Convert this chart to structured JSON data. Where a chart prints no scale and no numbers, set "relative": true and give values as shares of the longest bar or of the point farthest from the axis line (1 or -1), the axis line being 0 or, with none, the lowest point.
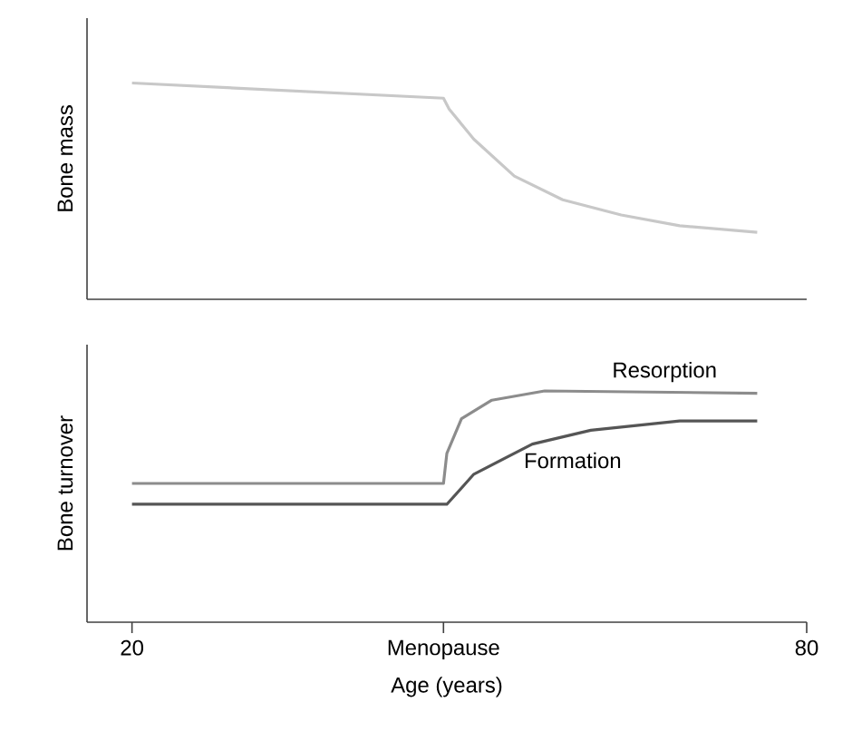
{
  "chart_data": [
    {
      "type": "line",
      "relative": true,
      "ylabel": "Bone mass",
      "xlim": [
        16,
        80
      ],
      "tick_labels": false,
      "series": [
        {
          "color": "#c8c8c8",
          "x": [
            20,
            47.7,
            48.2,
            50.4,
            54.0,
            58.3,
            63.5,
            68.7,
            75.6
          ],
          "values": [
            1.0,
            0.93,
            0.88,
            0.74,
            0.57,
            0.46,
            0.39,
            0.34,
            0.31
          ]
        }
      ]
    },
    {
      "type": "line",
      "relative": true,
      "ylabel": "Bone turnover",
      "xlabel": "Age (years)",
      "xlim": [
        16,
        80
      ],
      "tick_labels": "x",
      "xticks": [
        20,
        {
          "value": 47.7,
          "label": "Menopause"
        },
        80
      ],
      "series": [
        {
          "name": "Resorption",
          "color": "#8c8c8c",
          "x": [
            20,
            47.7,
            48.0,
            49.3,
            52.0,
            56.7,
            75.6
          ],
          "values": [
            0.6,
            0.6,
            0.73,
            0.88,
            0.96,
            1.0,
            0.99
          ]
        },
        {
          "name": "Formation",
          "color": "#555555",
          "x": [
            20,
            48.0,
            50.4,
            55.6,
            60.8,
            68.7,
            75.6
          ],
          "values": [
            0.51,
            0.51,
            0.64,
            0.77,
            0.83,
            0.87,
            0.87
          ]
        }
      ]
    }
  ]
}
